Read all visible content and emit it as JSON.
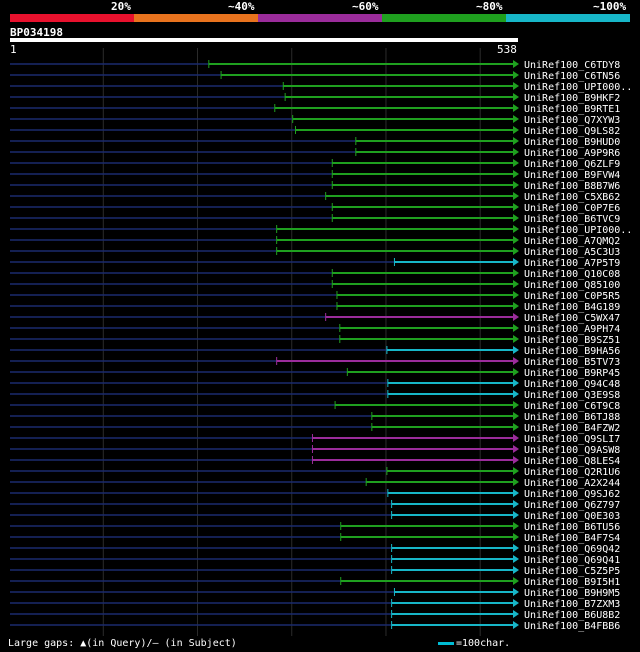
{
  "query": {
    "name": "BP034198",
    "start_label": "1",
    "end_label": "538",
    "length": 538
  },
  "identity_legend": [
    {
      "label": "20%",
      "color": "#e8112d"
    },
    {
      "label": "~40%",
      "color": "#e8731e"
    },
    {
      "label": "~60%",
      "color": "#9b2c9b"
    },
    {
      "label": "~80%",
      "color": "#1fa01f"
    },
    {
      "label": "~100%",
      "color": "#17b6c8"
    }
  ],
  "footer": {
    "gaps_text": "Large gaps: ▲(in Query)/— (in Subject)",
    "scale_text": "=100char."
  },
  "hits": [
    {
      "name": "UniRef100_C6TDY8",
      "start": 212,
      "color": "green"
    },
    {
      "name": "UniRef100_C6TN56",
      "start": 225,
      "color": "green"
    },
    {
      "name": "UniRef100_UPI000..",
      "start": 291,
      "color": "green"
    },
    {
      "name": "UniRef100_B9HKF2",
      "start": 293,
      "color": "green"
    },
    {
      "name": "UniRef100_B9RTE1",
      "start": 282,
      "color": "green"
    },
    {
      "name": "UniRef100_Q7XYW3",
      "start": 301,
      "color": "green"
    },
    {
      "name": "UniRef100_Q9LS82",
      "start": 304,
      "color": "green"
    },
    {
      "name": "UniRef100_B9HUD0",
      "start": 368,
      "color": "green"
    },
    {
      "name": "UniRef100_A9P9R6",
      "start": 368,
      "color": "green"
    },
    {
      "name": "UniRef100_Q6ZLF9",
      "start": 343,
      "color": "green"
    },
    {
      "name": "UniRef100_B9FVW4",
      "start": 343,
      "color": "green"
    },
    {
      "name": "UniRef100_B8B7W6",
      "start": 343,
      "color": "green"
    },
    {
      "name": "UniRef100_C5XB62",
      "start": 336,
      "color": "green"
    },
    {
      "name": "UniRef100_C0P7E6",
      "start": 343,
      "color": "green"
    },
    {
      "name": "UniRef100_B6TVC9",
      "start": 343,
      "color": "green"
    },
    {
      "name": "UniRef100_UPI000..",
      "start": 284,
      "color": "green"
    },
    {
      "name": "UniRef100_A7QMQ2",
      "start": 284,
      "color": "green"
    },
    {
      "name": "UniRef100_A5C3U3",
      "start": 284,
      "color": "green"
    },
    {
      "name": "UniRef100_A7P5T9",
      "start": 409,
      "color": "cyan"
    },
    {
      "name": "UniRef100_Q10C08",
      "start": 343,
      "color": "green"
    },
    {
      "name": "UniRef100_Q85100",
      "start": 343,
      "color": "green"
    },
    {
      "name": "UniRef100_C0P5R5",
      "start": 348,
      "color": "green"
    },
    {
      "name": "UniRef100_B4G189",
      "start": 348,
      "color": "green"
    },
    {
      "name": "UniRef100_C5WX47",
      "start": 336,
      "color": "purple"
    },
    {
      "name": "UniRef100_A9PH74",
      "start": 351,
      "color": "green"
    },
    {
      "name": "UniRef100_B9SZ51",
      "start": 351,
      "color": "green"
    },
    {
      "name": "UniRef100_B9HA56",
      "start": 401,
      "color": "cyan"
    },
    {
      "name": "UniRef100_B5TV73",
      "start": 284,
      "color": "purple"
    },
    {
      "name": "UniRef100_B9RP45",
      "start": 359,
      "color": "green"
    },
    {
      "name": "UniRef100_Q94C48",
      "start": 402,
      "color": "cyan"
    },
    {
      "name": "UniRef100_Q3E9S8",
      "start": 402,
      "color": "cyan"
    },
    {
      "name": "UniRef100_C6T9C8",
      "start": 346,
      "color": "green"
    },
    {
      "name": "UniRef100_B6TJ88",
      "start": 385,
      "color": "green"
    },
    {
      "name": "UniRef100_B4FZW2",
      "start": 385,
      "color": "green"
    },
    {
      "name": "UniRef100_Q9SLI7",
      "start": 322,
      "color": "purple"
    },
    {
      "name": "UniRef100_Q9ASW8",
      "start": 322,
      "color": "purple"
    },
    {
      "name": "UniRef100_Q8LES4",
      "start": 322,
      "color": "purple"
    },
    {
      "name": "UniRef100_Q2R1U6",
      "start": 401,
      "color": "green"
    },
    {
      "name": "UniRef100_A2X244",
      "start": 379,
      "color": "green"
    },
    {
      "name": "UniRef100_Q9SJ62",
      "start": 402,
      "color": "cyan"
    },
    {
      "name": "UniRef100_Q6Z797",
      "start": 406,
      "color": "cyan"
    },
    {
      "name": "UniRef100_Q0E303",
      "start": 406,
      "color": "cyan"
    },
    {
      "name": "UniRef100_B6TU56",
      "start": 352,
      "color": "green"
    },
    {
      "name": "UniRef100_B4F7S4",
      "start": 352,
      "color": "green"
    },
    {
      "name": "UniRef100_Q69Q42",
      "start": 406,
      "color": "cyan"
    },
    {
      "name": "UniRef100_Q69Q41",
      "start": 406,
      "color": "cyan"
    },
    {
      "name": "UniRef100_C5Z5P5",
      "start": 406,
      "color": "cyan"
    },
    {
      "name": "UniRef100_B9I5H1",
      "start": 352,
      "color": "green"
    },
    {
      "name": "UniRef100_B9H9M5",
      "start": 409,
      "color": "cyan"
    },
    {
      "name": "UniRef100_B7ZXM3",
      "start": 406,
      "color": "cyan"
    },
    {
      "name": "UniRef100_B6U8B2",
      "start": 406,
      "color": "cyan"
    },
    {
      "name": "UniRef100_B4FBB6",
      "start": 406,
      "color": "cyan"
    }
  ]
}
